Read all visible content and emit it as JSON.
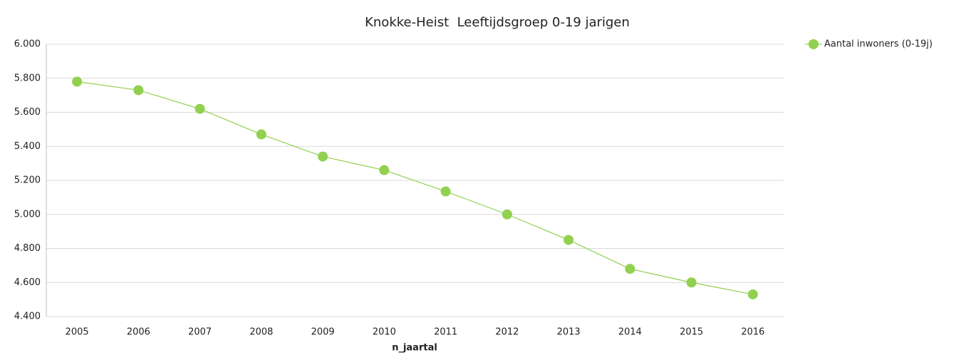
{
  "chart_data": {
    "type": "line",
    "title": "Knokke-Heist  Leeftijdsgroep 0-19 jarigen",
    "x_label": "n_jaartal",
    "categories": [
      "2005",
      "2006",
      "2007",
      "2008",
      "2009",
      "2010",
      "2011",
      "2012",
      "2013",
      "2014",
      "2015",
      "2016"
    ],
    "series": [
      {
        "name": "Aantal inwoners (0-19j)",
        "color": "#92d050",
        "values": [
          5780,
          5730,
          5620,
          5470,
          5340,
          5260,
          5135,
          5000,
          4850,
          4680,
          4600,
          4530
        ]
      }
    ],
    "ylim": [
      4400,
      6000
    ],
    "yticks": [
      {
        "value": 4400,
        "label": "4.400"
      },
      {
        "value": 4600,
        "label": "4.600"
      },
      {
        "value": 4800,
        "label": "4.800"
      },
      {
        "value": 5000,
        "label": "5.000"
      },
      {
        "value": 5200,
        "label": "5.200"
      },
      {
        "value": 5400,
        "label": "5.400"
      },
      {
        "value": 5600,
        "label": "5.600"
      },
      {
        "value": 5800,
        "label": "5.800"
      },
      {
        "value": 6000,
        "label": "6.000"
      }
    ],
    "grid": true,
    "legend": "top-right"
  }
}
